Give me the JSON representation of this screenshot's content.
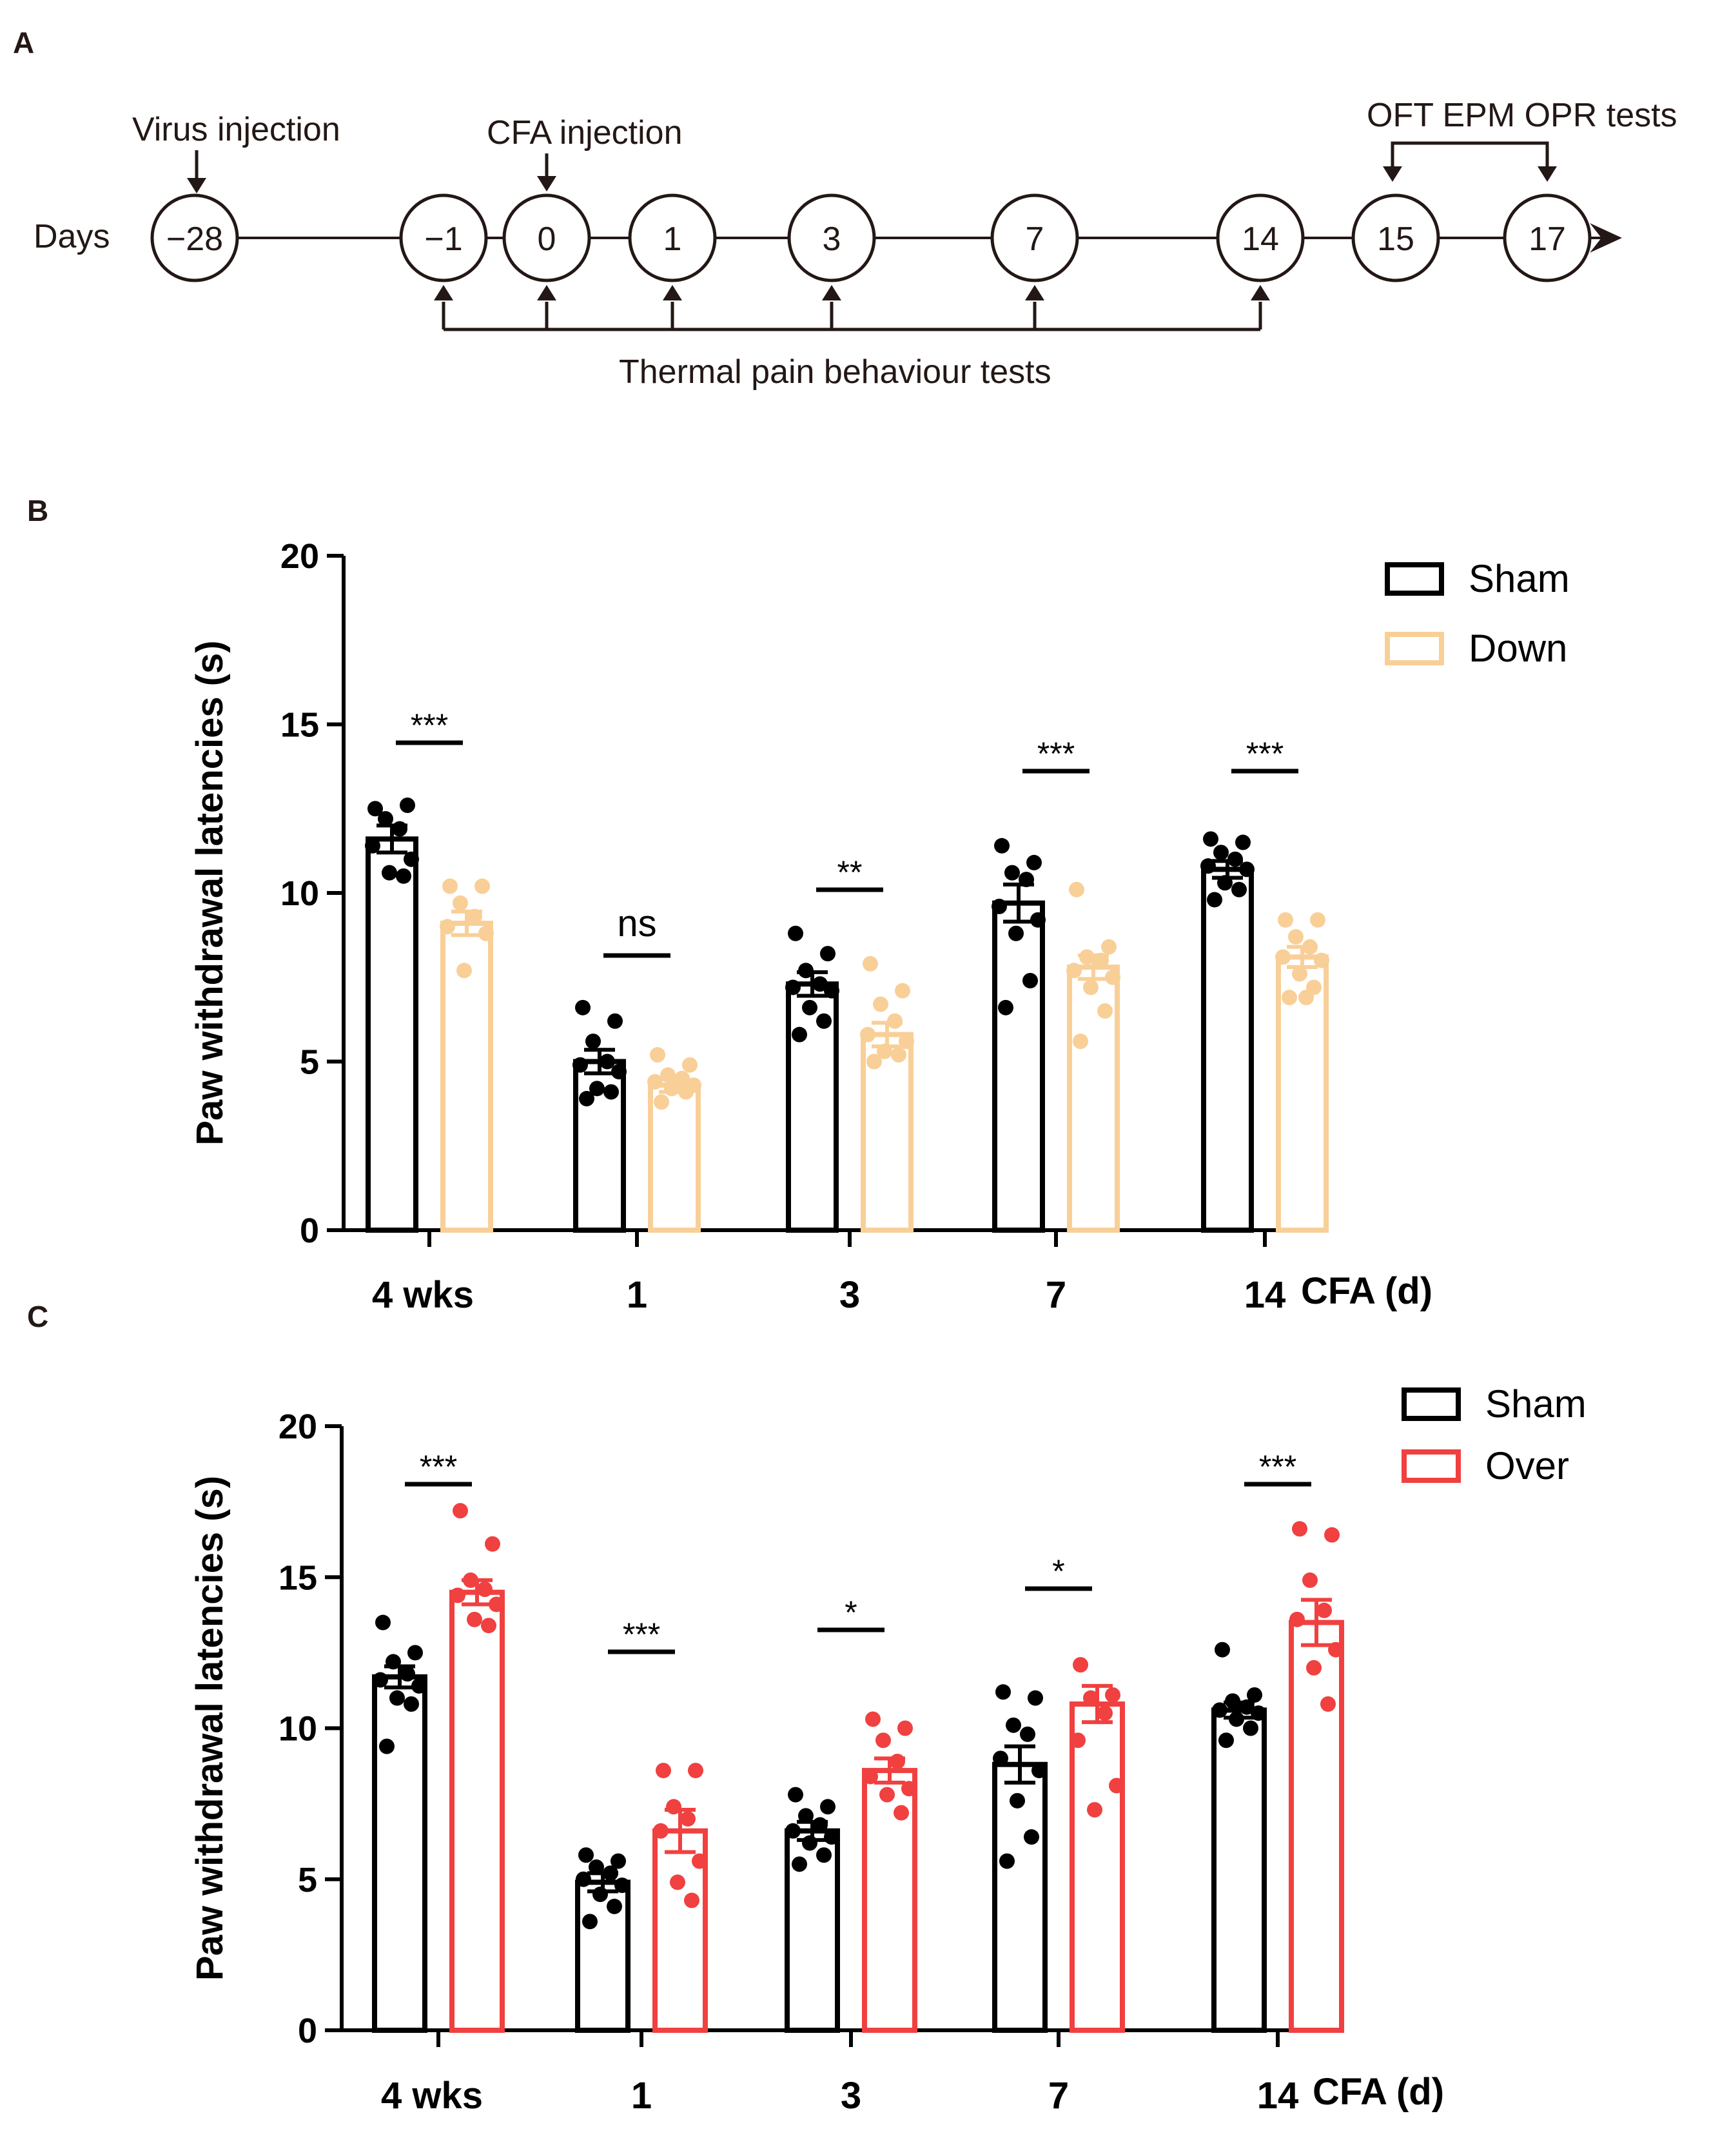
{
  "panels": {
    "a": "A",
    "b": "B",
    "c": "C"
  },
  "timeline": {
    "days_label": "Days",
    "virus_label": "Virus injection",
    "cfa_label": "CFA injection",
    "tests_label": "OFT EPM OPR tests",
    "thermal_label": "Thermal pain behaviour tests",
    "nodes": [
      "−28",
      "−1",
      "0",
      "1",
      "3",
      "7",
      "14",
      "15",
      "17"
    ]
  },
  "colors": {
    "sham": "#000000",
    "down": "#f9cf98",
    "over": "#f04040",
    "timeline": "#231815"
  },
  "chart_data": [
    {
      "id": "B",
      "type": "bar",
      "categories": [
        "4 wks",
        "1",
        "3",
        "7",
        "14"
      ],
      "x_suffix": "CFA (d)",
      "ylabel": "Paw withdrawal latencies (s)",
      "ylim": [
        0,
        20
      ],
      "yticks": [
        "0",
        "5",
        "10",
        "15",
        "20"
      ],
      "legend": [
        "Sham",
        "Down"
      ],
      "legend_position": "top-right",
      "series": [
        {
          "name": "Sham",
          "color_key": "sham",
          "values": [
            11.6,
            5.0,
            7.3,
            9.7,
            10.7
          ],
          "sem": [
            0.4,
            0.35,
            0.35,
            0.55,
            0.25
          ],
          "points": [
            [
              12.5,
              12.6,
              12.2,
              11.9,
              11.4,
              11.0,
              10.6,
              10.5
            ],
            [
              6.6,
              6.2,
              5.6,
              5.0,
              4.9,
              4.7,
              4.2,
              4.1,
              3.9
            ],
            [
              8.8,
              8.2,
              7.7,
              7.3,
              7.2,
              7.1,
              6.6,
              6.2,
              5.8
            ],
            [
              11.4,
              10.9,
              10.6,
              10.4,
              9.6,
              9.2,
              8.8,
              7.4,
              6.6
            ],
            [
              11.6,
              11.5,
              11.2,
              11.0,
              10.8,
              10.7,
              10.3,
              10.1,
              9.8
            ]
          ]
        },
        {
          "name": "Down",
          "color_key": "down",
          "values": [
            9.1,
            4.3,
            5.8,
            7.8,
            8.1
          ],
          "sem": [
            0.35,
            0.2,
            0.35,
            0.35,
            0.3
          ],
          "points": [
            [
              10.2,
              10.2,
              9.7,
              9.3,
              9.0,
              8.8,
              7.7
            ],
            [
              5.2,
              4.9,
              4.6,
              4.5,
              4.4,
              4.3,
              4.2,
              4.1,
              3.8
            ],
            [
              7.9,
              7.1,
              6.7,
              6.2,
              5.8,
              5.6,
              5.3,
              5.2,
              5.0
            ],
            [
              10.1,
              8.4,
              8.1,
              8.0,
              7.7,
              7.5,
              7.2,
              6.5,
              5.6
            ],
            [
              9.2,
              9.2,
              8.7,
              8.4,
              8.1,
              8.0,
              7.6,
              7.2,
              6.9,
              6.9
            ]
          ]
        }
      ],
      "significance": [
        "***",
        "ns",
        "**",
        "***",
        "***"
      ]
    },
    {
      "id": "C",
      "type": "bar",
      "categories": [
        "4 wks",
        "1",
        "3",
        "7",
        "14"
      ],
      "x_suffix": "CFA (d)",
      "ylabel": "Paw withdrawal latencies (s)",
      "ylim": [
        0,
        20
      ],
      "yticks": [
        "0",
        "5",
        "10",
        "15",
        "20"
      ],
      "legend": [
        "Sham",
        "Over"
      ],
      "legend_position": "top-right",
      "series": [
        {
          "name": "Sham",
          "color_key": "sham",
          "values": [
            11.7,
            4.9,
            6.6,
            8.8,
            10.6
          ],
          "sem": [
            0.35,
            0.3,
            0.3,
            0.6,
            0.25
          ],
          "points": [
            [
              13.5,
              12.5,
              12.2,
              11.8,
              11.6,
              11.4,
              11.0,
              10.8,
              9.4
            ],
            [
              5.8,
              5.6,
              5.4,
              5.2,
              5.0,
              4.8,
              4.5,
              4.1,
              3.6
            ],
            [
              7.8,
              7.4,
              7.1,
              6.8,
              6.6,
              6.4,
              6.2,
              5.8,
              5.5
            ],
            [
              11.2,
              11.0,
              10.1,
              9.8,
              9.0,
              8.6,
              7.6,
              6.4,
              5.6
            ],
            [
              12.6,
              11.1,
              10.9,
              10.7,
              10.6,
              10.5,
              10.3,
              10.0,
              9.6
            ]
          ]
        },
        {
          "name": "Over",
          "color_key": "over",
          "values": [
            14.5,
            6.6,
            8.6,
            10.8,
            13.5
          ],
          "sem": [
            0.4,
            0.7,
            0.4,
            0.6,
            0.75
          ],
          "points": [
            [
              17.2,
              16.1,
              14.9,
              14.6,
              14.4,
              14.1,
              13.6,
              13.4
            ],
            [
              8.6,
              8.6,
              7.4,
              7.0,
              6.6,
              5.6,
              4.9,
              4.3
            ],
            [
              10.3,
              10.0,
              9.6,
              8.9,
              8.4,
              8.0,
              7.8,
              7.2
            ],
            [
              12.1,
              11.1,
              11.0,
              10.5,
              9.6,
              8.1,
              7.3
            ],
            [
              16.6,
              16.4,
              14.9,
              13.9,
              13.6,
              12.6,
              12.0,
              10.8
            ]
          ]
        }
      ],
      "significance": [
        "***",
        "***",
        "*",
        "*",
        "***"
      ]
    }
  ]
}
